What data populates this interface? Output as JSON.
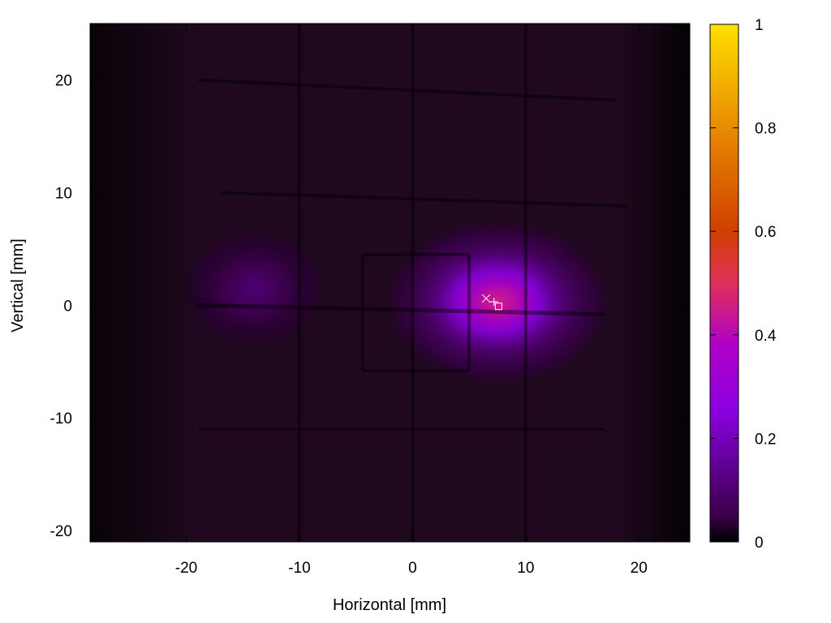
{
  "chart_data": {
    "type": "heatmap",
    "title": "",
    "xlabel": "Horizontal [mm]",
    "ylabel": "Vertical [mm]",
    "xlim": [
      -28.5,
      24.5
    ],
    "ylim": [
      -21,
      25
    ],
    "x_ticks": [
      -20,
      -10,
      0,
      10,
      20
    ],
    "x_tick_labels": [
      "-20",
      "-10",
      "0",
      "10",
      "20"
    ],
    "y_ticks": [
      -20,
      -10,
      0,
      10,
      20
    ],
    "y_tick_labels": [
      "-20",
      "-10",
      "0",
      "10",
      "20"
    ],
    "colorbar": {
      "range": [
        0,
        1
      ],
      "ticks": [
        0,
        0.2,
        0.4,
        0.6,
        0.8,
        1
      ],
      "tick_labels": [
        "0",
        "0.2",
        "0.4",
        "0.6",
        "0.8",
        "1"
      ],
      "colormap": [
        "#000000",
        "#3a0049",
        "#8a00e0",
        "#b000c8",
        "#e0305a",
        "#d04000",
        "#e88a00",
        "#ffe000"
      ],
      "colormap_stops": [
        0,
        0.05,
        0.25,
        0.38,
        0.5,
        0.6,
        0.8,
        1
      ]
    },
    "intensity_peaks": [
      {
        "x": 7.5,
        "y": 0.3,
        "sigma_x": 4.5,
        "sigma_y": 3.3,
        "value": 0.45
      },
      {
        "x": -14,
        "y": 1.5,
        "sigma_x": 2.8,
        "sigma_y": 2.3,
        "value": 0.1
      }
    ],
    "background_level": 0.03,
    "markers": [
      {
        "shape": "cross",
        "x": 6.5,
        "y": 0.6
      },
      {
        "shape": "plus",
        "x": 7.2,
        "y": 0.3
      },
      {
        "shape": "square",
        "x": 7.6,
        "y": -0.1
      }
    ],
    "grid": false,
    "legend": "none"
  }
}
